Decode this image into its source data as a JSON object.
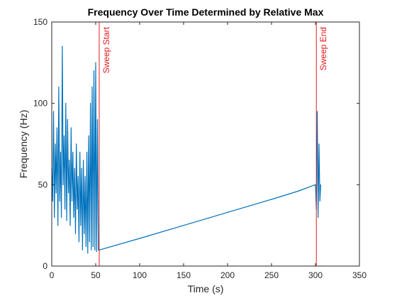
{
  "chart_data": {
    "type": "line",
    "title": "Frequency Over Time Determined by Relative Max",
    "xlabel": "Time (s)",
    "ylabel": "Frequency (Hz)",
    "xlim": [
      0,
      350
    ],
    "ylim": [
      0,
      150
    ],
    "xticks": [
      0,
      50,
      100,
      150,
      200,
      250,
      300,
      350
    ],
    "yticks": [
      0,
      50,
      100,
      150
    ],
    "grid": false,
    "series": [
      {
        "color": "#0072BD",
        "x": [
          0,
          1,
          2,
          3,
          4,
          5,
          6,
          7,
          8,
          9,
          10,
          11,
          12,
          13,
          14,
          15,
          16,
          17,
          18,
          19,
          20,
          21,
          22,
          23,
          24,
          25,
          26,
          27,
          28,
          29,
          30,
          31,
          32,
          33,
          34,
          35,
          36,
          37,
          38,
          39,
          40,
          41,
          42,
          43,
          44,
          45,
          46,
          47,
          48,
          49,
          50,
          51,
          52,
          53,
          54,
          55,
          100,
          150,
          200,
          250,
          280,
          295,
          300,
          301,
          302,
          303,
          304,
          305,
          306
        ],
        "y": [
          60,
          40,
          95,
          30,
          75,
          45,
          85,
          25,
          110,
          40,
          70,
          30,
          135,
          50,
          80,
          35,
          100,
          28,
          90,
          45,
          65,
          25,
          85,
          40,
          70,
          30,
          60,
          20,
          75,
          35,
          55,
          15,
          70,
          25,
          60,
          10,
          65,
          20,
          55,
          12,
          70,
          8,
          80,
          15,
          100,
          10,
          110,
          12,
          120,
          10,
          125,
          9,
          90,
          10,
          10,
          10,
          17,
          25,
          33,
          41,
          46,
          49,
          50,
          35,
          95,
          30,
          75,
          40,
          50
        ]
      }
    ],
    "annotations": [
      {
        "text": "Sweep Start",
        "x": 54,
        "color": "#E31A1C"
      },
      {
        "text": "Sweep End",
        "x": 301,
        "color": "#E31A1C"
      }
    ]
  }
}
